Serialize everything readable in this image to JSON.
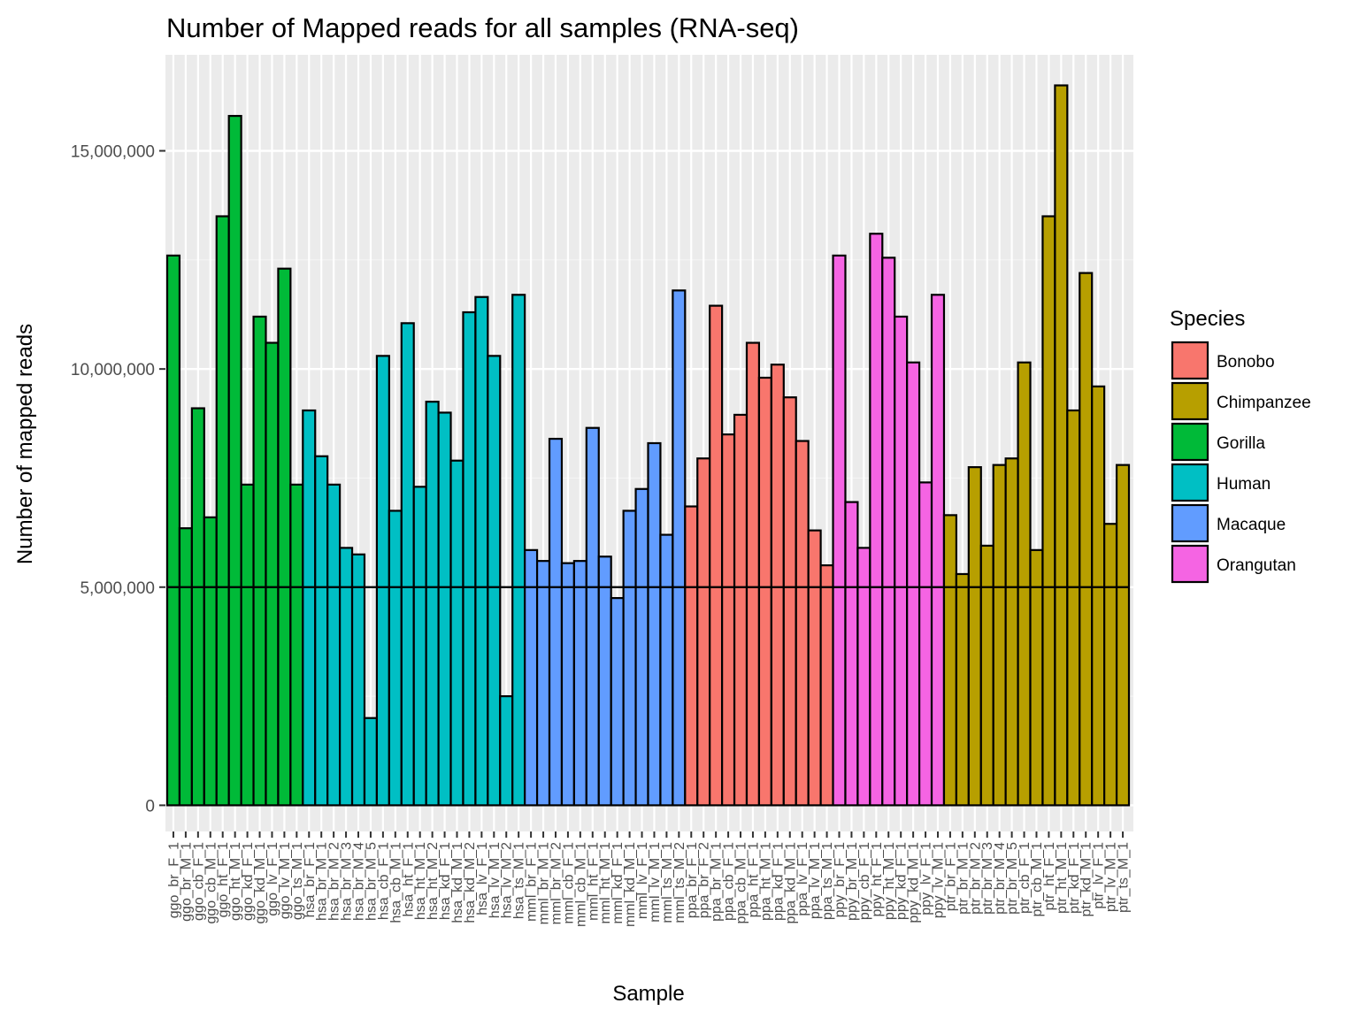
{
  "chart_data": {
    "type": "bar",
    "title": "Number of Mapped reads for all samples (RNA-seq)",
    "xlabel": "Sample",
    "ylabel": "Number of mapped reads",
    "ylim": [
      -600000,
      17200000
    ],
    "yticks": [
      0,
      5000000,
      10000000,
      15000000
    ],
    "ytick_labels": [
      "0",
      "5,000,000",
      "10,000,000",
      "15,000,000"
    ],
    "grid": true,
    "reference_line": 5000000,
    "legend": {
      "title": "Species",
      "position": "right",
      "entries": [
        {
          "name": "Bonobo",
          "color": "#F8766D"
        },
        {
          "name": "Chimpanzee",
          "color": "#B79F00"
        },
        {
          "name": "Gorilla",
          "color": "#00BA38"
        },
        {
          "name": "Human",
          "color": "#00BFC4"
        },
        {
          "name": "Macaque",
          "color": "#619CFF"
        },
        {
          "name": "Orangutan",
          "color": "#F564E3"
        }
      ]
    },
    "categories": [
      "ggo_br_F_1",
      "ggo_br_M_1",
      "ggo_cb_F_1",
      "ggo_cb_M_1",
      "ggo_ht_F_1",
      "ggo_ht_M_1",
      "ggo_kd_F_1",
      "ggo_kd_M_1",
      "ggo_lv_F_1",
      "ggo_lv_M_1",
      "ggo_ts_M_1",
      "hsa_br_F_1",
      "hsa_br_M_1",
      "hsa_br_M_2",
      "hsa_br_M_3",
      "hsa_br_M_4",
      "hsa_br_M_5",
      "hsa_cb_F_1",
      "hsa_cb_M_1",
      "hsa_ht_F_1",
      "hsa_ht_M_1",
      "hsa_ht_M_2",
      "hsa_kd_F_1",
      "hsa_kd_M_1",
      "hsa_kd_M_2",
      "hsa_lv_F_1",
      "hsa_lv_M_1",
      "hsa_lv_M_2",
      "hsa_ts_M_1",
      "mml_br_F_1",
      "mml_br_M_1",
      "mml_br_M_2",
      "mml_cb_F_1",
      "mml_cb_M_1",
      "mml_ht_F_1",
      "mml_ht_M_1",
      "mml_kd_F_1",
      "mml_kd_M_1",
      "mml_lv_F_1",
      "mml_lv_M_1",
      "mml_ts_M_1",
      "mml_ts_M_2",
      "ppa_br_F_1",
      "ppa_br_F_2",
      "ppa_br_M_1",
      "ppa_cb_F_1",
      "ppa_cb_M_1",
      "ppa_ht_F_1",
      "ppa_ht_M_1",
      "ppa_kd_F_1",
      "ppa_kd_M_1",
      "ppa_lv_F_1",
      "ppa_lv_M_1",
      "ppa_ts_M_1",
      "ppy_br_F_1",
      "ppy_br_M_1",
      "ppy_cb_F_1",
      "ppy_ht_F_1",
      "ppy_ht_M_1",
      "ppy_kd_F_1",
      "ppy_kd_M_1",
      "ppy_lv_F_1",
      "ppy_lv_M_1",
      "ptr_br_F_1",
      "ptr_br_M_1",
      "ptr_br_M_2",
      "ptr_br_M_3",
      "ptr_br_M_4",
      "ptr_br_M_5",
      "ptr_cb_F_1",
      "ptr_cb_M_1",
      "ptr_ht_F_1",
      "ptr_ht_M_1",
      "ptr_kd_F_1",
      "ptr_kd_M_1",
      "ptr_lv_F_1",
      "ptr_lv_M_1",
      "ptr_ts_M_1"
    ],
    "series_by_bar": [
      "Gorilla",
      "Gorilla",
      "Gorilla",
      "Gorilla",
      "Gorilla",
      "Gorilla",
      "Gorilla",
      "Gorilla",
      "Gorilla",
      "Gorilla",
      "Gorilla",
      "Human",
      "Human",
      "Human",
      "Human",
      "Human",
      "Human",
      "Human",
      "Human",
      "Human",
      "Human",
      "Human",
      "Human",
      "Human",
      "Human",
      "Human",
      "Human",
      "Human",
      "Human",
      "Macaque",
      "Macaque",
      "Macaque",
      "Macaque",
      "Macaque",
      "Macaque",
      "Macaque",
      "Macaque",
      "Macaque",
      "Macaque",
      "Macaque",
      "Macaque",
      "Macaque",
      "Bonobo",
      "Bonobo",
      "Bonobo",
      "Bonobo",
      "Bonobo",
      "Bonobo",
      "Bonobo",
      "Bonobo",
      "Bonobo",
      "Bonobo",
      "Bonobo",
      "Bonobo",
      "Orangutan",
      "Orangutan",
      "Orangutan",
      "Orangutan",
      "Orangutan",
      "Orangutan",
      "Orangutan",
      "Orangutan",
      "Orangutan",
      "Chimpanzee",
      "Chimpanzee",
      "Chimpanzee",
      "Chimpanzee",
      "Chimpanzee",
      "Chimpanzee",
      "Chimpanzee",
      "Chimpanzee",
      "Chimpanzee",
      "Chimpanzee",
      "Chimpanzee",
      "Chimpanzee",
      "Chimpanzee",
      "Chimpanzee",
      "Chimpanzee"
    ],
    "values": [
      12600000,
      6350000,
      9100000,
      6600000,
      13500000,
      15800000,
      7350000,
      11200000,
      10600000,
      12300000,
      7350000,
      9050000,
      8000000,
      7350000,
      5900000,
      5750000,
      2000000,
      10300000,
      6750000,
      11050000,
      7300000,
      9250000,
      9000000,
      7900000,
      11300000,
      11650000,
      10300000,
      2500000,
      11700000,
      5850000,
      5600000,
      8400000,
      5550000,
      5600000,
      8650000,
      5700000,
      4750000,
      6750000,
      7250000,
      8300000,
      6200000,
      11800000,
      6850000,
      7950000,
      11450000,
      8500000,
      8950000,
      10600000,
      9800000,
      10100000,
      9350000,
      8350000,
      6300000,
      5500000,
      12600000,
      6950000,
      5900000,
      13100000,
      12550000,
      11200000,
      10150000,
      7400000,
      11700000,
      6650000,
      5300000,
      7750000,
      5950000,
      7800000,
      7950000,
      10150000,
      5850000,
      13500000,
      16500000,
      9050000,
      12200000,
      9600000,
      6450000,
      7800000
    ]
  }
}
